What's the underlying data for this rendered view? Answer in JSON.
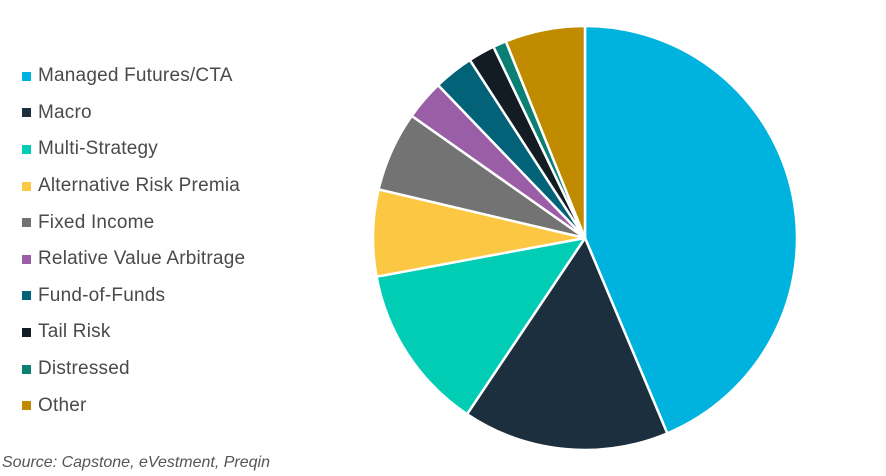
{
  "chart_data": {
    "type": "pie",
    "title": "",
    "categories": [
      "Managed Futures/CTA",
      "Macro",
      "Multi-Strategy",
      "Alternative Risk Premia",
      "Fixed Income",
      "Relative Value Arbitrage",
      "Fund-of-Funds",
      "Tail Risk",
      "Distressed",
      "Other"
    ],
    "values": [
      43,
      15.5,
      12.5,
      6.5,
      6,
      3,
      3,
      2,
      1,
      6
    ],
    "colors": [
      "#00b2de",
      "#1c2f3f",
      "#00cdb4",
      "#fcc742",
      "#737373",
      "#9a5ea6",
      "#026277",
      "#131c23",
      "#0a7f72",
      "#c18b00"
    ],
    "legend_position": "left",
    "start_angle_deg": 0,
    "direction": "clockwise"
  },
  "source_note": "Source: Capstone, eVestment, Preqin"
}
